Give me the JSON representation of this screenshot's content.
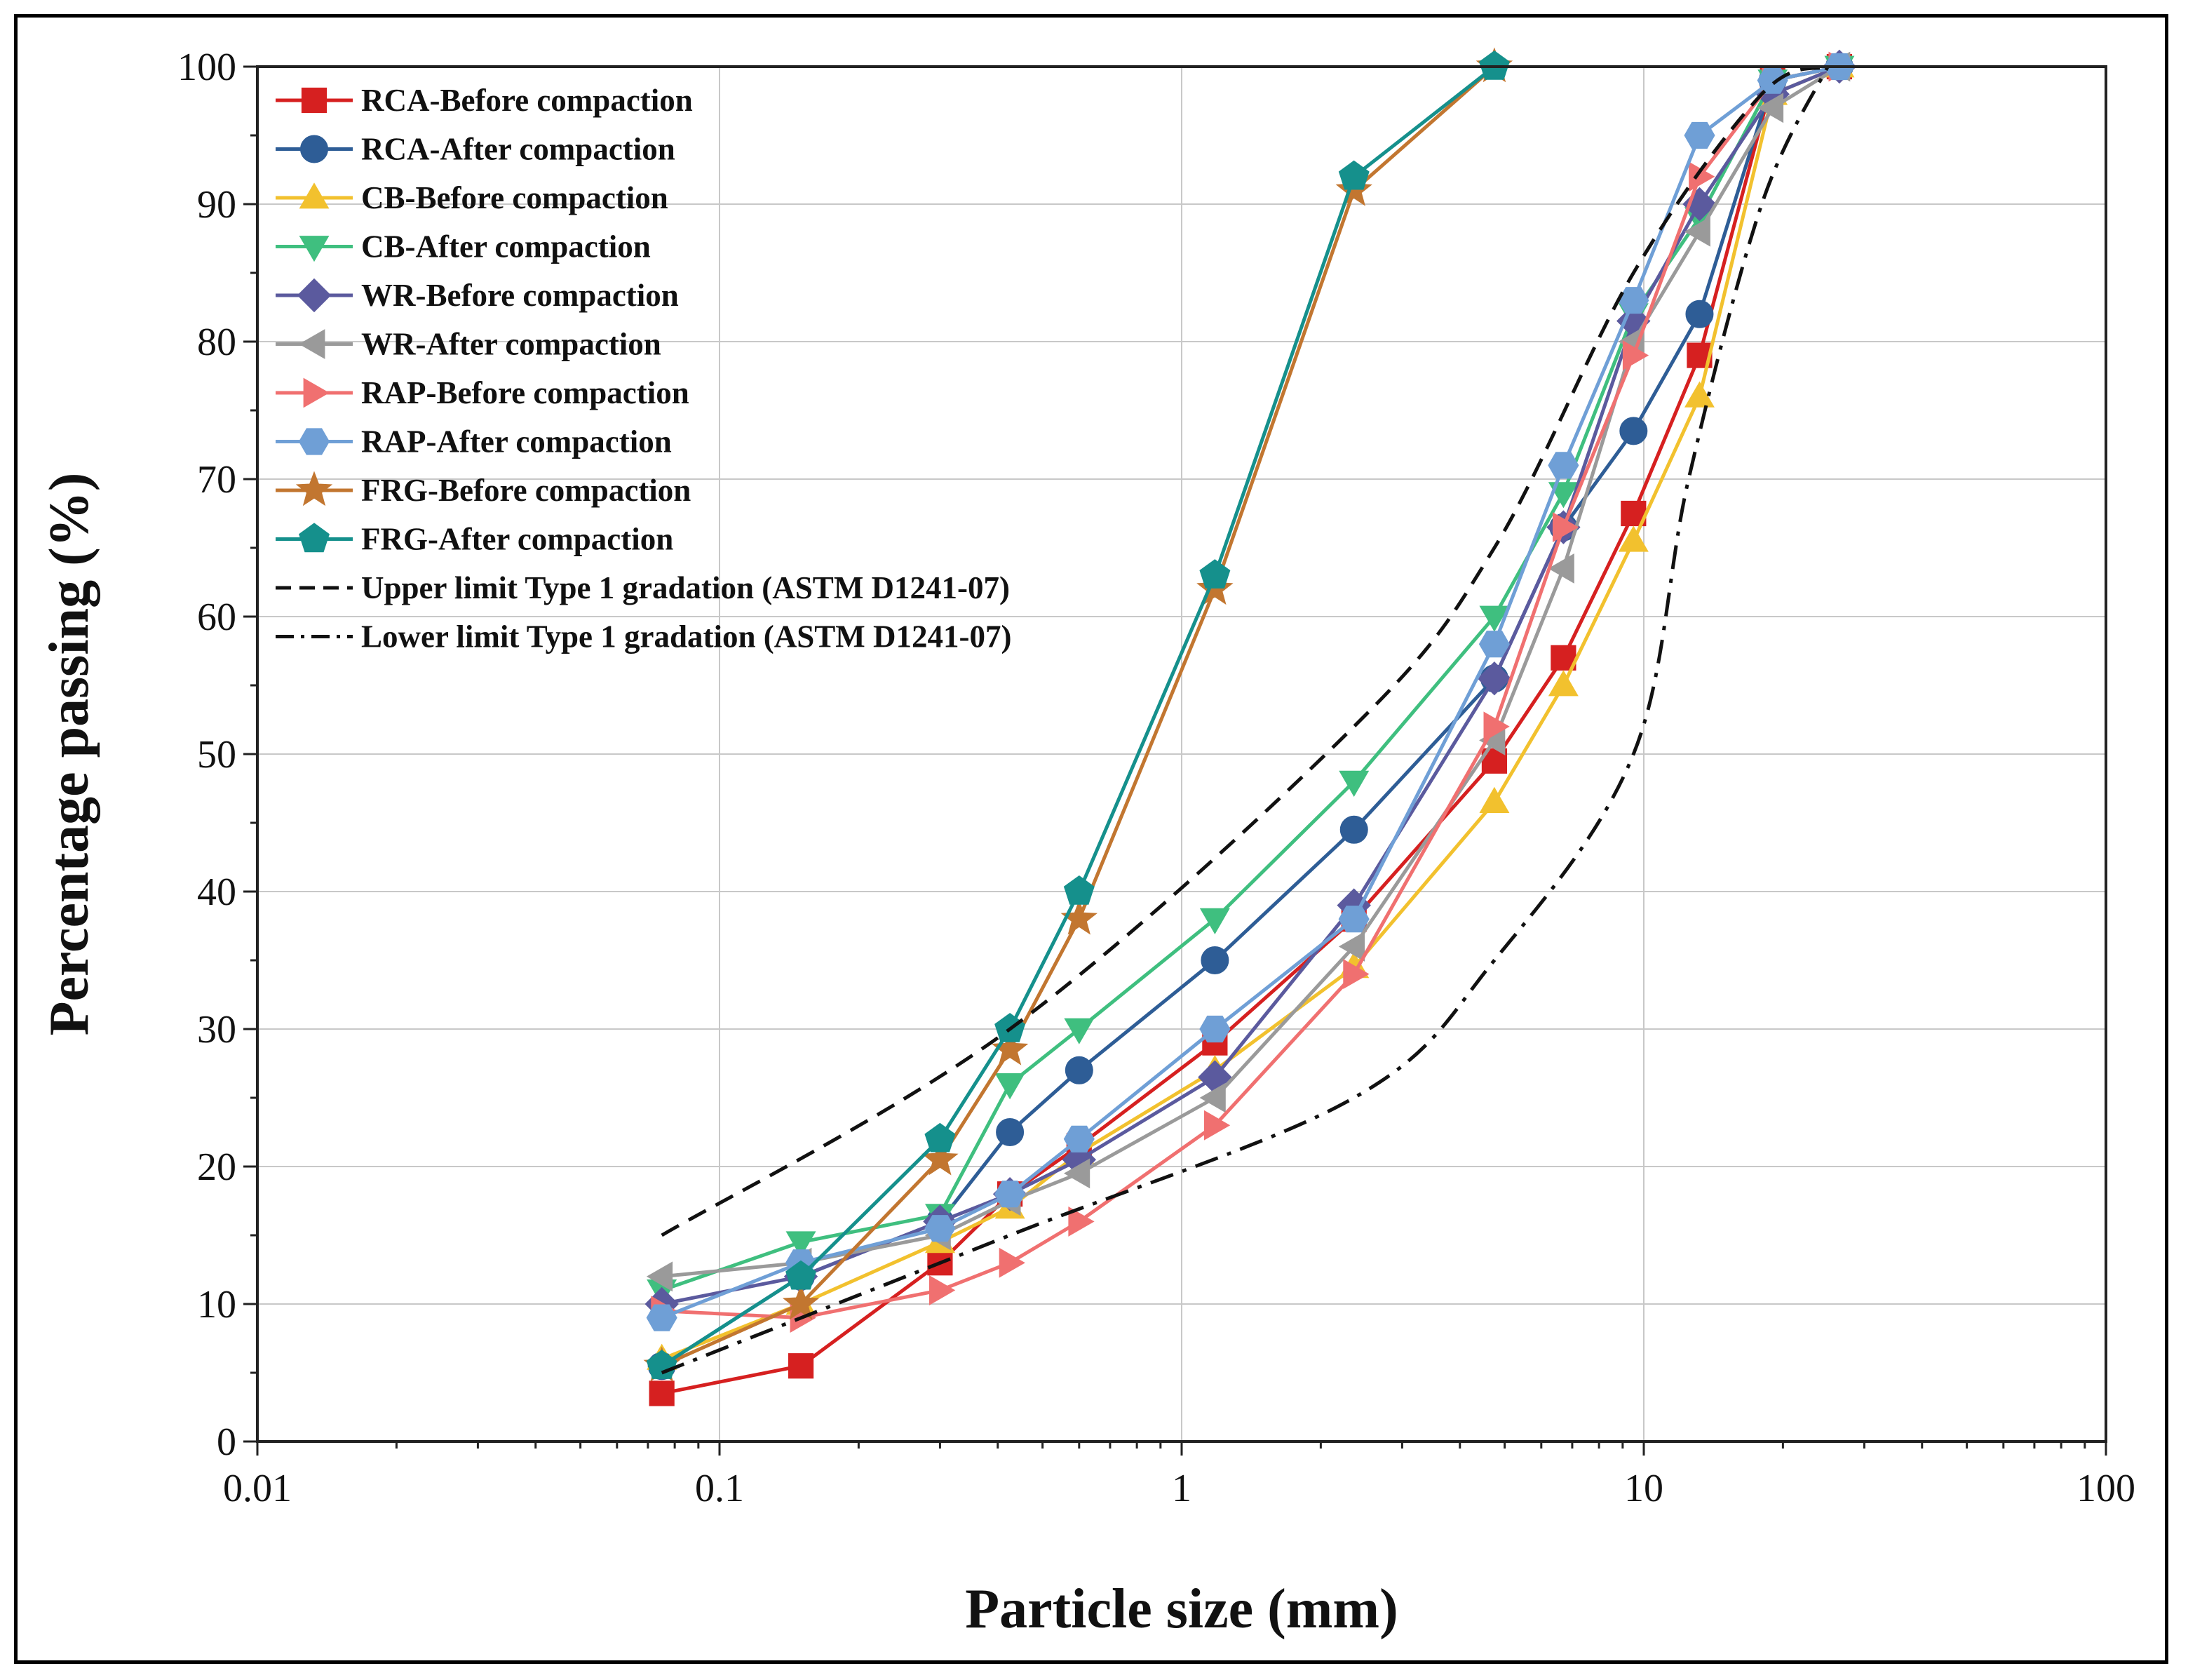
{
  "chart_data": {
    "type": "line",
    "x_scale": "log",
    "xlabel": "Particle size (mm)",
    "ylabel": "Percentage passing (%)",
    "xlim": [
      0.01,
      100
    ],
    "ylim": [
      0,
      100
    ],
    "x_ticks": [
      0.01,
      0.1,
      1,
      10,
      100
    ],
    "x_tick_labels": [
      "0.01",
      "0.1",
      "1",
      "10",
      "100"
    ],
    "y_ticks": [
      0,
      10,
      20,
      30,
      40,
      50,
      60,
      70,
      80,
      90,
      100
    ],
    "y_tick_labels": [
      "0",
      "10",
      "20",
      "30",
      "40",
      "50",
      "60",
      "70",
      "80",
      "90",
      "100"
    ],
    "grid": true,
    "legend_position": "top-left",
    "sieve_sizes": [
      0.075,
      0.15,
      0.3,
      0.425,
      0.6,
      1.18,
      2.36,
      4.75,
      6.7,
      9.5,
      13.2,
      19,
      26.5
    ],
    "series": [
      {
        "name": "RCA-Before compaction",
        "color": "#d62020",
        "marker": "square",
        "values": [
          3.5,
          5.5,
          13,
          18,
          21.5,
          29,
          38,
          49.5,
          57,
          67.5,
          79,
          99,
          100
        ]
      },
      {
        "name": "RCA-After compaction",
        "color": "#2e5d96",
        "marker": "circle",
        "values": [
          5.5,
          12,
          16,
          22.5,
          27,
          35,
          44.5,
          55.5,
          66.5,
          73.5,
          82,
          99,
          100
        ]
      },
      {
        "name": "CB-Before compaction",
        "color": "#f2c12e",
        "marker": "triangle-up",
        "values": [
          6,
          10,
          14.5,
          17,
          21,
          27,
          34.5,
          46.5,
          55,
          65.5,
          76,
          98,
          100
        ]
      },
      {
        "name": "CB-After compaction",
        "color": "#3fbf7f",
        "marker": "triangle-down",
        "values": [
          11,
          14.5,
          16.5,
          26,
          30,
          38,
          48,
          60,
          69,
          82,
          89,
          99,
          100
        ]
      },
      {
        "name": "WR-Before compaction",
        "color": "#5b5a9e",
        "marker": "diamond",
        "values": [
          10,
          12,
          16,
          18,
          20.5,
          26.5,
          39,
          55.5,
          66.5,
          81.5,
          90,
          98,
          100
        ]
      },
      {
        "name": "WR-After compaction",
        "color": "#9a9a9a",
        "marker": "triangle-left",
        "values": [
          12,
          13,
          15,
          17.5,
          19.5,
          25,
          36,
          51,
          63.5,
          80,
          88,
          97,
          100
        ]
      },
      {
        "name": "RAP-Before compaction",
        "color": "#f07070",
        "marker": "triangle-right",
        "values": [
          9.5,
          9,
          11,
          13,
          16,
          23,
          34,
          52,
          66.5,
          79,
          92,
          99,
          100
        ]
      },
      {
        "name": "RAP-After compaction",
        "color": "#6f9fd6",
        "marker": "hexagon",
        "values": [
          9,
          13,
          15.5,
          18,
          22,
          30,
          38,
          58,
          71,
          83,
          95,
          99,
          100
        ]
      },
      {
        "name": "FRG-Before compaction",
        "color": "#c27630",
        "marker": "star",
        "values": [
          5.5,
          10,
          20.5,
          28.5,
          38,
          62,
          91,
          100
        ]
      },
      {
        "name": "FRG-After compaction",
        "color": "#15908c",
        "marker": "pentagon",
        "values": [
          5.5,
          12,
          22,
          30,
          40,
          63,
          92,
          100
        ]
      },
      {
        "name": "Upper limit Type 1 gradation (ASTM D1241-07)",
        "color": "#111111",
        "marker": "none",
        "dash": "dash",
        "x": [
          0.075,
          0.425,
          2.36,
          4.75,
          9.5,
          18,
          25
        ],
        "values": [
          15,
          30,
          52,
          65,
          85,
          98,
          100
        ]
      },
      {
        "name": "Lower limit Type 1 gradation (ASTM D1241-07)",
        "color": "#111111",
        "marker": "none",
        "dash": "dashdot",
        "x": [
          0.075,
          0.425,
          2.36,
          4.75,
          9.5,
          12.5,
          18,
          25
        ],
        "values": [
          5,
          15,
          25,
          35,
          50,
          70,
          90,
          100
        ]
      }
    ]
  }
}
